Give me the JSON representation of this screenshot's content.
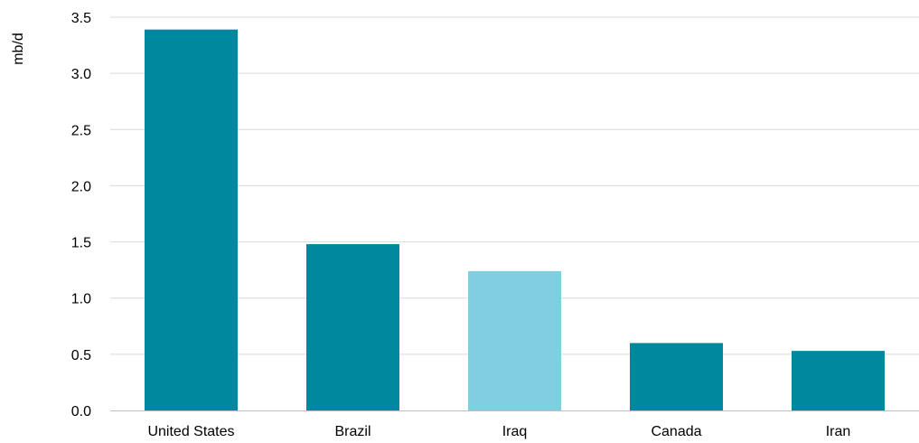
{
  "chart_data": {
    "type": "bar",
    "title": "",
    "xlabel": "",
    "ylabel": "mb/d",
    "categories": [
      "United States",
      "Brazil",
      "Iraq",
      "Canada",
      "Iran"
    ],
    "values": [
      3.39,
      1.48,
      1.24,
      0.6,
      0.53
    ],
    "ylim": [
      0,
      3.5
    ],
    "yticks": [
      "0.0",
      "0.5",
      "1.0",
      "1.5",
      "2.0",
      "2.5",
      "3.0",
      "3.5"
    ],
    "grid": true,
    "legend": "none",
    "colors": {
      "primary": "#00889e",
      "highlight": "#80cfe0",
      "grid": "#d9d9d9",
      "axis": "#bfbfbf"
    },
    "highlight_categories": [
      "Iraq"
    ]
  }
}
